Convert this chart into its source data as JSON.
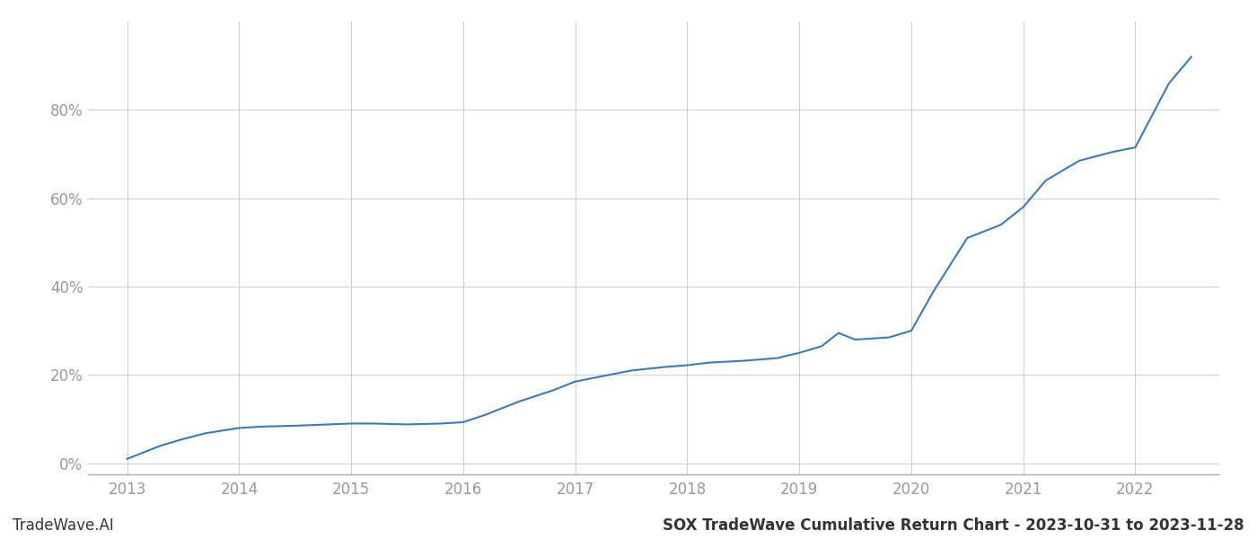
{
  "title": "SOX TradeWave Cumulative Return Chart - 2023-10-31 to 2023-11-28",
  "watermark": "TradeWave.AI",
  "line_color": "#3a7abf",
  "background_color": "#ffffff",
  "grid_color": "#cccccc",
  "x_values": [
    2013.0,
    2013.05,
    2013.15,
    2013.3,
    2013.5,
    2013.7,
    2014.0,
    2014.2,
    2014.5,
    2014.8,
    2015.0,
    2015.2,
    2015.5,
    2015.8,
    2016.0,
    2016.2,
    2016.5,
    2016.8,
    2017.0,
    2017.2,
    2017.5,
    2017.8,
    2018.0,
    2018.2,
    2018.5,
    2018.8,
    2019.0,
    2019.2,
    2019.35,
    2019.5,
    2019.8,
    2020.0,
    2020.2,
    2020.5,
    2020.8,
    2021.0,
    2021.2,
    2021.5,
    2021.8,
    2022.0,
    2022.3,
    2022.5
  ],
  "y_values": [
    0.01,
    0.015,
    0.025,
    0.04,
    0.055,
    0.068,
    0.08,
    0.083,
    0.085,
    0.088,
    0.09,
    0.09,
    0.088,
    0.09,
    0.093,
    0.11,
    0.14,
    0.165,
    0.185,
    0.195,
    0.21,
    0.218,
    0.222,
    0.228,
    0.232,
    0.238,
    0.25,
    0.265,
    0.295,
    0.28,
    0.285,
    0.3,
    0.39,
    0.51,
    0.54,
    0.58,
    0.64,
    0.685,
    0.705,
    0.715,
    0.86,
    0.92
  ],
  "xlim": [
    2012.65,
    2022.75
  ],
  "ylim": [
    -0.025,
    1.0
  ],
  "yticks": [
    0.0,
    0.2,
    0.4,
    0.6,
    0.8
  ],
  "xticks": [
    2013,
    2014,
    2015,
    2016,
    2017,
    2018,
    2019,
    2020,
    2021,
    2022
  ],
  "line_width": 1.5,
  "tick_color": "#999999",
  "label_fontsize": 12,
  "watermark_fontsize": 12,
  "title_fontsize": 12
}
